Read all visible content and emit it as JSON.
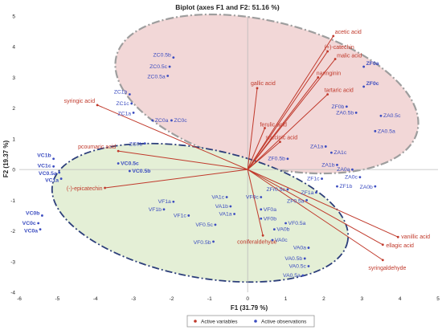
{
  "chart_data": {
    "type": "scatter",
    "title": "Biplot (axes F1 and F2: 51.16 %)",
    "xlabel": "F1 (31.79 %)",
    "ylabel": "F2 (19.37 %)",
    "xlim": [
      -6,
      5
    ],
    "ylim": [
      -4,
      5
    ],
    "xticks": [
      -6,
      -5,
      -4,
      -3,
      -2,
      -1,
      0,
      1,
      2,
      3,
      4,
      5
    ],
    "yticks": [
      -4,
      -3,
      -2,
      -1,
      0,
      1,
      2,
      3,
      4,
      5
    ],
    "grid": false,
    "legend": {
      "position": "bottom",
      "items": [
        "Active variables",
        "Active observations"
      ]
    },
    "colors": {
      "variables": "#c0392b",
      "variable_labels": "#c0392b",
      "observations": "#3b4cc0",
      "observation_labels": "#3b4cc0",
      "ellipse_red_fill": "#f2d7d7",
      "ellipse_red_stroke": "#9e9e9e",
      "ellipse_green_fill": "#e4efd6",
      "ellipse_green_stroke": "#2c3e7a",
      "axes": "#bbbbbb"
    },
    "variables": [
      {
        "name": "acetic acid",
        "x": 2.25,
        "y": 4.35
      },
      {
        "name": "(+)-catechin",
        "x": 2.1,
        "y": 3.85
      },
      {
        "name": "malic acid",
        "x": 2.3,
        "y": 3.6
      },
      {
        "name": "naringinin",
        "x": 1.85,
        "y": 3.0
      },
      {
        "name": "tartaric acid",
        "x": 2.1,
        "y": 2.45
      },
      {
        "name": "gallic acid",
        "x": 0.25,
        "y": 2.65
      },
      {
        "name": "ferulic acid",
        "x": 0.45,
        "y": 1.35
      },
      {
        "name": "succinic acid",
        "x": 0.85,
        "y": 0.9
      },
      {
        "name": "syringic acid",
        "x": -3.95,
        "y": 2.1
      },
      {
        "name": "pcoumaric acid",
        "x": -3.4,
        "y": 0.6
      },
      {
        "name": "(-)-epicatechin",
        "x": -3.75,
        "y": -0.6
      },
      {
        "name": "coniferaldehyde",
        "x": 0.4,
        "y": -2.15
      },
      {
        "name": "vanillic acid",
        "x": 3.95,
        "y": -2.2
      },
      {
        "name": "ellagic acid",
        "x": 3.55,
        "y": -2.45
      },
      {
        "name": "syringaldehyde",
        "x": 3.55,
        "y": -2.95
      }
    ],
    "observations": [
      {
        "name": "ZC0.5b",
        "x": -1.95,
        "y": 3.65
      },
      {
        "name": "ZC0.5c",
        "x": -2.05,
        "y": 3.35
      },
      {
        "name": "ZC0.5a",
        "x": -2.1,
        "y": 3.05
      },
      {
        "name": "ZC1b",
        "x": -3.1,
        "y": 2.45
      },
      {
        "name": "ZC1c",
        "x": -3.05,
        "y": 2.15
      },
      {
        "name": "ZC1a",
        "x": -3.0,
        "y": 1.85
      },
      {
        "name": "ZC0a",
        "x": -2.5,
        "y": 1.6
      },
      {
        "name": "ZC0c",
        "x": -2.0,
        "y": 1.6
      },
      {
        "name": "ZC0b",
        "x": -2.7,
        "y": 0.85
      },
      {
        "name": "ZF0a",
        "x": 3.05,
        "y": 3.35
      },
      {
        "name": "ZF0c",
        "x": 3.05,
        "y": 2.7
      },
      {
        "name": "ZF0b",
        "x": 2.6,
        "y": 2.05
      },
      {
        "name": "ZA0.5b",
        "x": 2.85,
        "y": 1.85
      },
      {
        "name": "ZA0.5c",
        "x": 3.5,
        "y": 1.75
      },
      {
        "name": "ZA0.5a",
        "x": 3.35,
        "y": 1.25
      },
      {
        "name": "ZA1a",
        "x": 2.05,
        "y": 0.75
      },
      {
        "name": "ZA1c",
        "x": 2.2,
        "y": 0.55
      },
      {
        "name": "ZF0.5b",
        "x": 1.05,
        "y": 0.35
      },
      {
        "name": "ZA1b",
        "x": 2.35,
        "y": 0.15
      },
      {
        "name": "ZA0a",
        "x": 2.75,
        "y": 0.0
      },
      {
        "name": "ZA0c",
        "x": 2.95,
        "y": -0.25
      },
      {
        "name": "ZA0b",
        "x": 3.35,
        "y": -0.55
      },
      {
        "name": "ZF1c",
        "x": 1.95,
        "y": -0.3
      },
      {
        "name": "ZFr0.5c",
        "x": 1.05,
        "y": -0.65
      },
      {
        "name": "ZF1b",
        "x": 2.35,
        "y": -0.55
      },
      {
        "name": "ZF1a",
        "x": 1.8,
        "y": -0.75
      },
      {
        "name": "ZF0.5a",
        "x": 1.55,
        "y": -1.0
      },
      {
        "name": "VC1b",
        "x": -5.1,
        "y": 0.35
      },
      {
        "name": "VC1c",
        "x": -5.1,
        "y": 0.1
      },
      {
        "name": "VC0.5a",
        "x": -4.95,
        "y": -0.1
      },
      {
        "name": "VC1a",
        "x": -4.9,
        "y": -0.3
      },
      {
        "name": "VC0.5c",
        "x": -3.4,
        "y": 0.2
      },
      {
        "name": "VC0.5b",
        "x": -3.1,
        "y": -0.05
      },
      {
        "name": "VC0b",
        "x": -5.4,
        "y": -1.5
      },
      {
        "name": "VC0c",
        "x": -5.5,
        "y": -1.75
      },
      {
        "name": "VC0a",
        "x": -5.45,
        "y": -1.95
      },
      {
        "name": "VF1a",
        "x": -1.95,
        "y": -1.05
      },
      {
        "name": "VF1b",
        "x": -2.2,
        "y": -1.3
      },
      {
        "name": "VF1c",
        "x": -1.55,
        "y": -1.5
      },
      {
        "name": "VA1c",
        "x": -0.55,
        "y": -0.9
      },
      {
        "name": "VA1b",
        "x": -0.45,
        "y": -1.2
      },
      {
        "name": "VA1a",
        "x": -0.35,
        "y": -1.45
      },
      {
        "name": "VF0c",
        "x": 0.35,
        "y": -0.9
      },
      {
        "name": "VF0a",
        "x": 0.35,
        "y": -1.3
      },
      {
        "name": "VF0b",
        "x": 0.35,
        "y": -1.6
      },
      {
        "name": "VF0.5c",
        "x": -0.85,
        "y": -1.8
      },
      {
        "name": "VF0.5b",
        "x": -0.9,
        "y": -2.35
      },
      {
        "name": "VF0.5a",
        "x": 1.0,
        "y": -1.75
      },
      {
        "name": "VA0b",
        "x": 0.7,
        "y": -1.95
      },
      {
        "name": "VA0c",
        "x": 0.65,
        "y": -2.3
      },
      {
        "name": "VA0a",
        "x": 1.6,
        "y": -2.55
      },
      {
        "name": "VA0.5b",
        "x": 1.5,
        "y": -2.9
      },
      {
        "name": "VA0.5c",
        "x": 1.6,
        "y": -3.15
      },
      {
        "name": "VA0.5a",
        "x": 1.45,
        "y": -3.45
      }
    ]
  }
}
